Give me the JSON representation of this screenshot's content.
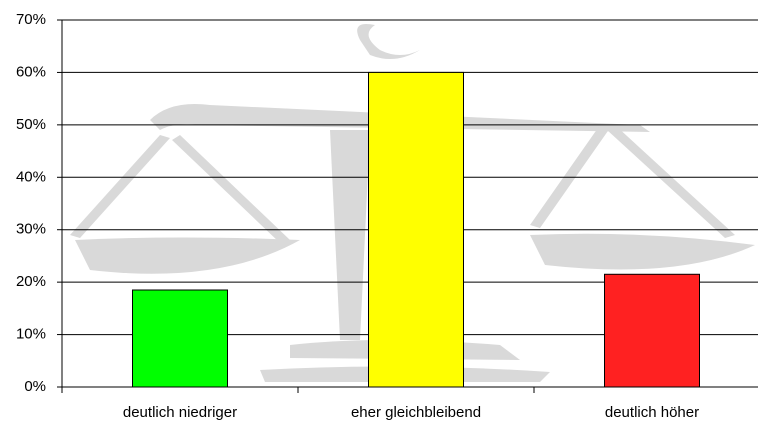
{
  "chart_data": {
    "type": "bar",
    "categories": [
      "deutlich niedriger",
      "eher gleichbleibend",
      "deutlich höher"
    ],
    "values": [
      18.5,
      60,
      21.5
    ],
    "colors": [
      "#00ff00",
      "#ffff00",
      "#ff2121"
    ],
    "ylim": [
      0,
      70
    ],
    "yticks": [
      {
        "value": 0,
        "label": "0%"
      },
      {
        "value": 10,
        "label": "10%"
      },
      {
        "value": 20,
        "label": "20%"
      },
      {
        "value": 30,
        "label": "30%"
      },
      {
        "value": 40,
        "label": "40%"
      },
      {
        "value": 50,
        "label": "50%"
      },
      {
        "value": 60,
        "label": "60%"
      },
      {
        "value": 70,
        "label": "70%"
      }
    ],
    "grid": true
  }
}
